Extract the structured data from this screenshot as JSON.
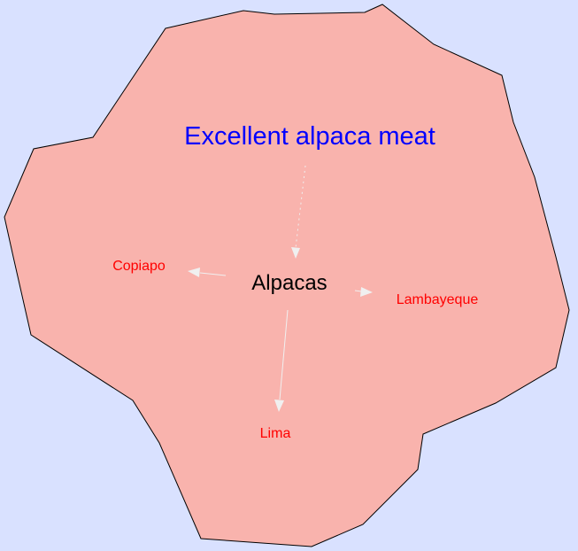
{
  "colors": {
    "background": "#d9e1ff",
    "region_fill": "#f9b3ad",
    "region_stroke": "#000000",
    "title_color": "#0000ff",
    "center_color": "#000000",
    "place_color": "#ff0000",
    "arrow_color": "#f0f0f0"
  },
  "diagram": {
    "title": "Excellent alpaca meat",
    "center": "Alpacas",
    "places": {
      "copiapo": "Copiapo",
      "lambayeque": "Lambayeque",
      "lima": "Lima"
    }
  }
}
